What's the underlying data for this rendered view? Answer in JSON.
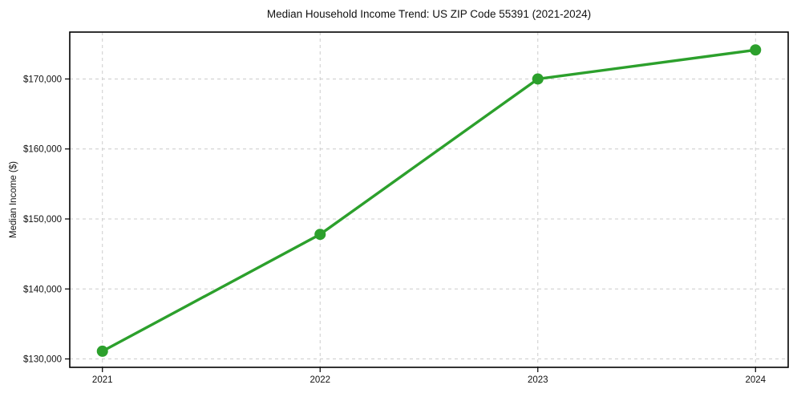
{
  "chart_data": {
    "type": "line",
    "title": "Median Household Income Trend: US ZIP Code 55391 (2021-2024)",
    "xlabel": "",
    "ylabel": "Median Income ($)",
    "x": [
      2021,
      2022,
      2023,
      2024
    ],
    "x_tick_labels": [
      "2021",
      "2022",
      "2023",
      "2024"
    ],
    "y_ticks": [
      130000,
      140000,
      150000,
      160000,
      170000
    ],
    "y_tick_labels": [
      "$130,000",
      "$140,000",
      "$150,000",
      "$160,000",
      "$170,000"
    ],
    "series": [
      {
        "name": "Median Household Income",
        "values": [
          131100,
          147800,
          170000,
          174150
        ]
      }
    ],
    "xlim": [
      2020.85,
      2024.15
    ],
    "ylim": [
      128800,
      176700
    ],
    "grid": "both, dashed",
    "legend": "none",
    "colors": {
      "line": "#2ca02c",
      "marker": "#2ca02c",
      "grid": "#cccccc",
      "axis": "#000000",
      "text": "#111111",
      "background": "#ffffff"
    }
  }
}
